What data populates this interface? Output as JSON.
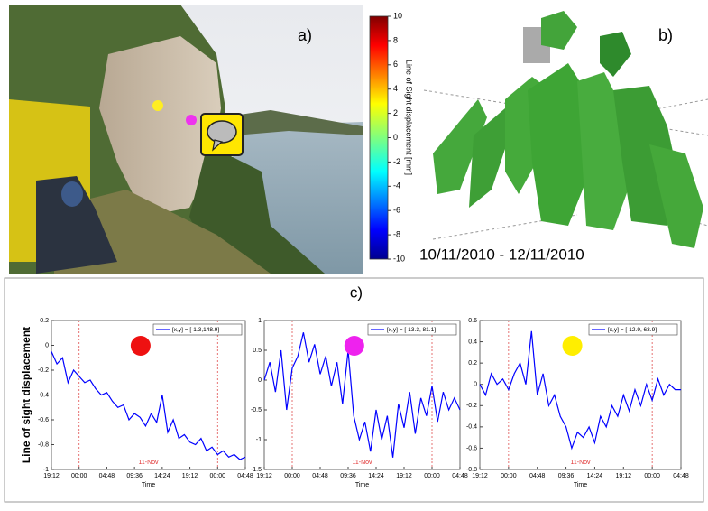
{
  "labels": {
    "a": "a)",
    "b": "b)",
    "c": "c)"
  },
  "date_range": "10/11/2010 - 12/11/2010",
  "chart_data": [
    {
      "type": "colorbar",
      "label": "Line of Sight displacement [mm]",
      "ylim": [
        -10,
        10
      ],
      "yticks": [
        10,
        8,
        6,
        4,
        2,
        0,
        -2,
        -4,
        -6,
        -8,
        -10
      ]
    },
    {
      "type": "line",
      "ylabel": "Line of sight displacement",
      "xlabel": "Time",
      "annotation": "11-Nov",
      "marker_color": "#ee1111",
      "x": [
        0,
        0.96,
        1.92,
        2.88,
        3.84,
        4.8,
        5.76,
        6.72,
        7.68,
        8.64,
        9.6,
        10.56,
        11.52,
        12.48,
        13.44,
        14.4,
        15.36,
        16.32,
        17.28,
        18.24,
        19.2,
        20.16,
        21.12,
        22.08,
        23.04,
        24,
        24.96,
        25.92,
        26.88,
        27.84,
        28.8,
        29.76,
        30.72,
        31.68,
        32.64,
        33.6
      ],
      "xlim": [
        0,
        33.6
      ],
      "xticks": [
        {
          "value": 0,
          "label": "19:12"
        },
        {
          "value": 4.8,
          "label": "00:00"
        },
        {
          "value": 9.6,
          "label": "04:48"
        },
        {
          "value": 14.4,
          "label": "09:36"
        },
        {
          "value": 19.2,
          "label": "14:24"
        },
        {
          "value": 24,
          "label": "19:12"
        },
        {
          "value": 28.8,
          "label": "00:00"
        },
        {
          "value": 33.6,
          "label": "04:48"
        }
      ],
      "ylim": [
        -1,
        0.2
      ],
      "yticks": [
        0.2,
        0,
        -0.2,
        -0.4,
        -0.6,
        -0.8,
        -1
      ],
      "series": [
        {
          "name": "[x,y] = [-1.3,148.9]",
          "color": "#0000ff",
          "values": [
            -0.05,
            -0.15,
            -0.1,
            -0.3,
            -0.2,
            -0.25,
            -0.3,
            -0.28,
            -0.35,
            -0.4,
            -0.38,
            -0.45,
            -0.5,
            -0.48,
            -0.6,
            -0.55,
            -0.58,
            -0.65,
            -0.55,
            -0.62,
            -0.4,
            -0.7,
            -0.6,
            -0.75,
            -0.72,
            -0.78,
            -0.8,
            -0.75,
            -0.85,
            -0.82,
            -0.88,
            -0.85,
            -0.9,
            -0.88,
            -0.92,
            -0.9
          ]
        }
      ]
    },
    {
      "type": "line",
      "xlabel": "Time",
      "annotation": "11-Nov",
      "marker_color": "#ee22ee",
      "x": [
        0,
        0.96,
        1.92,
        2.88,
        3.84,
        4.8,
        5.76,
        6.72,
        7.68,
        8.64,
        9.6,
        10.56,
        11.52,
        12.48,
        13.44,
        14.4,
        15.36,
        16.32,
        17.28,
        18.24,
        19.2,
        20.16,
        21.12,
        22.08,
        23.04,
        24,
        24.96,
        25.92,
        26.88,
        27.84,
        28.8,
        29.76,
        30.72,
        31.68,
        32.64,
        33.6
      ],
      "xlim": [
        0,
        33.6
      ],
      "xticks": [
        {
          "value": 0,
          "label": "19:12"
        },
        {
          "value": 4.8,
          "label": "00:00"
        },
        {
          "value": 9.6,
          "label": "04:48"
        },
        {
          "value": 14.4,
          "label": "09:36"
        },
        {
          "value": 19.2,
          "label": "14:24"
        },
        {
          "value": 24,
          "label": "19:12"
        },
        {
          "value": 28.8,
          "label": "00:00"
        },
        {
          "value": 33.6,
          "label": "04:48"
        }
      ],
      "ylim": [
        -1.5,
        1
      ],
      "yticks": [
        1,
        0.5,
        0,
        -0.5,
        -1,
        -1.5
      ],
      "series": [
        {
          "name": "[x,y] = [-13.3, 81.1]",
          "color": "#0000ff",
          "values": [
            0,
            0.3,
            -0.2,
            0.5,
            -0.5,
            0.2,
            0.4,
            0.8,
            0.3,
            0.6,
            0.1,
            0.4,
            -0.1,
            0.3,
            -0.4,
            0.5,
            -0.6,
            -1.0,
            -0.7,
            -1.2,
            -0.5,
            -1.0,
            -0.6,
            -1.3,
            -0.4,
            -0.8,
            -0.2,
            -0.9,
            -0.3,
            -0.6,
            -0.1,
            -0.7,
            -0.2,
            -0.5,
            -0.3,
            -0.5
          ]
        }
      ]
    },
    {
      "type": "line",
      "xlabel": "Time",
      "annotation": "11-Nov",
      "marker_color": "#ffee00",
      "x": [
        0,
        0.96,
        1.92,
        2.88,
        3.84,
        4.8,
        5.76,
        6.72,
        7.68,
        8.64,
        9.6,
        10.56,
        11.52,
        12.48,
        13.44,
        14.4,
        15.36,
        16.32,
        17.28,
        18.24,
        19.2,
        20.16,
        21.12,
        22.08,
        23.04,
        24,
        24.96,
        25.92,
        26.88,
        27.84,
        28.8,
        29.76,
        30.72,
        31.68,
        32.64,
        33.6
      ],
      "xlim": [
        0,
        33.6
      ],
      "xticks": [
        {
          "value": 0,
          "label": "19:12"
        },
        {
          "value": 4.8,
          "label": "00:00"
        },
        {
          "value": 9.6,
          "label": "04:48"
        },
        {
          "value": 14.4,
          "label": "09:36"
        },
        {
          "value": 19.2,
          "label": "14:24"
        },
        {
          "value": 24,
          "label": "19:12"
        },
        {
          "value": 28.8,
          "label": "00:00"
        },
        {
          "value": 33.6,
          "label": "04:48"
        }
      ],
      "ylim": [
        -0.8,
        0.6
      ],
      "yticks": [
        0.6,
        0.4,
        0.2,
        0,
        -0.2,
        -0.4,
        -0.6,
        -0.8
      ],
      "series": [
        {
          "name": "[x,y] = [-12.9, 63.9]",
          "color": "#0000ff",
          "values": [
            0,
            -0.1,
            0.1,
            0,
            0.05,
            -0.05,
            0.1,
            0.2,
            0,
            0.5,
            -0.1,
            0.1,
            -0.2,
            -0.1,
            -0.3,
            -0.4,
            -0.6,
            -0.45,
            -0.5,
            -0.4,
            -0.55,
            -0.3,
            -0.4,
            -0.2,
            -0.3,
            -0.1,
            -0.25,
            -0.05,
            -0.2,
            0,
            -0.15,
            0.05,
            -0.1,
            0,
            -0.05,
            -0.05
          ]
        }
      ]
    }
  ]
}
